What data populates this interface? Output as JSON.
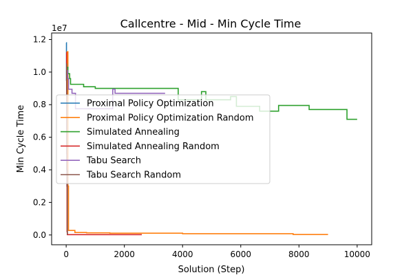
{
  "chart_data": {
    "type": "line",
    "title": "Callcentre - Mid - Min Cycle Time",
    "xlabel": "Solution (Step)",
    "ylabel": "Min Cycle Time",
    "y_offset_text": "1e7",
    "xlim": [
      -500,
      10500
    ],
    "ylim": [
      -600000,
      12400000
    ],
    "x_ticks": [
      0,
      2000,
      4000,
      6000,
      8000,
      10000
    ],
    "x_tick_labels": [
      "0",
      "2000",
      "4000",
      "6000",
      "8000",
      "10000"
    ],
    "y_ticks": [
      0,
      2000000,
      4000000,
      6000000,
      8000000,
      10000000,
      12000000
    ],
    "y_tick_labels": [
      "0.0",
      "0.2",
      "0.4",
      "0.6",
      "0.8",
      "1.0",
      "1.2"
    ],
    "grid": false,
    "legend_position": "center-left",
    "series": [
      {
        "name": "Proximal Policy Optimization",
        "color": "#1f77b4",
        "x": [
          0,
          10,
          10,
          25,
          25,
          40,
          40,
          60
        ],
        "y": [
          11800000,
          11800000,
          9500000,
          9500000,
          3000000,
          3000000,
          100000,
          100000
        ]
      },
      {
        "name": "Proximal Policy Optimization Random",
        "color": "#ff7f0e",
        "x": [
          0,
          30,
          30,
          60,
          60,
          80,
          80,
          300,
          300,
          700,
          700,
          1500,
          1500,
          4000,
          4000,
          7800,
          7800,
          9000
        ],
        "y": [
          9000000,
          9000000,
          11250000,
          11250000,
          3000000,
          3000000,
          280000,
          280000,
          150000,
          150000,
          130000,
          130000,
          110000,
          110000,
          80000,
          80000,
          30000,
          30000
        ]
      },
      {
        "name": "Simulated Annealing",
        "color": "#2ca02c",
        "x": [
          0,
          60,
          60,
          120,
          120,
          150,
          150,
          600,
          600,
          1000,
          1000,
          3850,
          3850,
          4650,
          4650,
          4800,
          4800,
          5650,
          5650,
          5850,
          5850,
          6650,
          6650,
          7300,
          7300,
          8350,
          8350,
          9650,
          9650,
          10000
        ],
        "y": [
          10300000,
          10300000,
          9900000,
          9900000,
          9600000,
          9600000,
          9250000,
          9250000,
          9100000,
          9100000,
          9000000,
          9000000,
          8300000,
          8300000,
          8800000,
          8800000,
          8300000,
          8300000,
          8500000,
          8500000,
          7900000,
          7900000,
          7600000,
          7600000,
          7950000,
          7950000,
          7700000,
          7700000,
          7100000,
          7100000
        ]
      },
      {
        "name": "Simulated Annealing Random",
        "color": "#d62728",
        "x": [
          0,
          15,
          15,
          30,
          30,
          40,
          40,
          2600
        ],
        "y": [
          11200000,
          11200000,
          5000000,
          5000000,
          200000,
          200000,
          20000,
          20000
        ]
      },
      {
        "name": "Tabu Search",
        "color": "#9467bd",
        "x": [
          0,
          50,
          50,
          80,
          80,
          200,
          200,
          320,
          320,
          1600,
          1600,
          1680,
          1680,
          3400
        ],
        "y": [
          10100000,
          10100000,
          9600000,
          9600000,
          8950000,
          8950000,
          8700000,
          8700000,
          7750000,
          7750000,
          8950000,
          8950000,
          8700000,
          8700000
        ]
      },
      {
        "name": "Tabu Search Random",
        "color": "#8c564b",
        "x": [
          0,
          20,
          20,
          40,
          40,
          60
        ],
        "y": [
          10500000,
          10500000,
          4000000,
          4000000,
          50000,
          50000
        ]
      }
    ]
  }
}
